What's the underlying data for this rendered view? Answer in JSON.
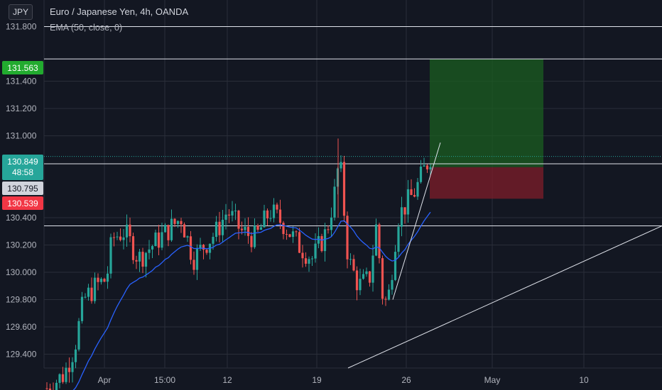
{
  "header": {
    "symbol_badge": "JPY",
    "title": "Euro / Japanese Yen, 4h, OANDA",
    "indicator": "EMA (50, close, 0)"
  },
  "price_tags": {
    "take_profit": "131.563",
    "last_price": "130.849",
    "countdown": "48:58",
    "level": "130.795",
    "stop_loss": "130.539"
  },
  "colors": {
    "background": "#131722",
    "up_candle": "#26a69a",
    "down_candle": "#ef5350",
    "ema": "#2962ff",
    "grid": "#2a2e39",
    "profit_zone": "#1b5e20",
    "loss_zone": "#7f1d2a",
    "take_profit_tag": "#22ab2f",
    "stop_loss_tag": "#f23645",
    "last_price_tag": "#26a69a"
  },
  "chart_data": {
    "type": "candlestick",
    "title": "Euro / Japanese Yen, 4h, OANDA",
    "y_ticks": [
      "129.400",
      "129.600",
      "129.800",
      "130.000",
      "130.200",
      "130.400",
      "131.000",
      "131.200",
      "131.400",
      "131.800"
    ],
    "x_ticks": [
      "Apr",
      "15:00",
      "12",
      "19",
      "26",
      "May",
      "10"
    ],
    "ylim": [
      129.2,
      132.1
    ],
    "horizontal_levels": [
      131.563,
      130.849,
      130.795,
      130.539,
      130.34,
      131.8
    ],
    "position": {
      "entry": 130.77,
      "take_profit": 131.563,
      "stop_loss": 130.539
    },
    "ema_label": "EMA (50, close, 0)",
    "grid": true
  }
}
